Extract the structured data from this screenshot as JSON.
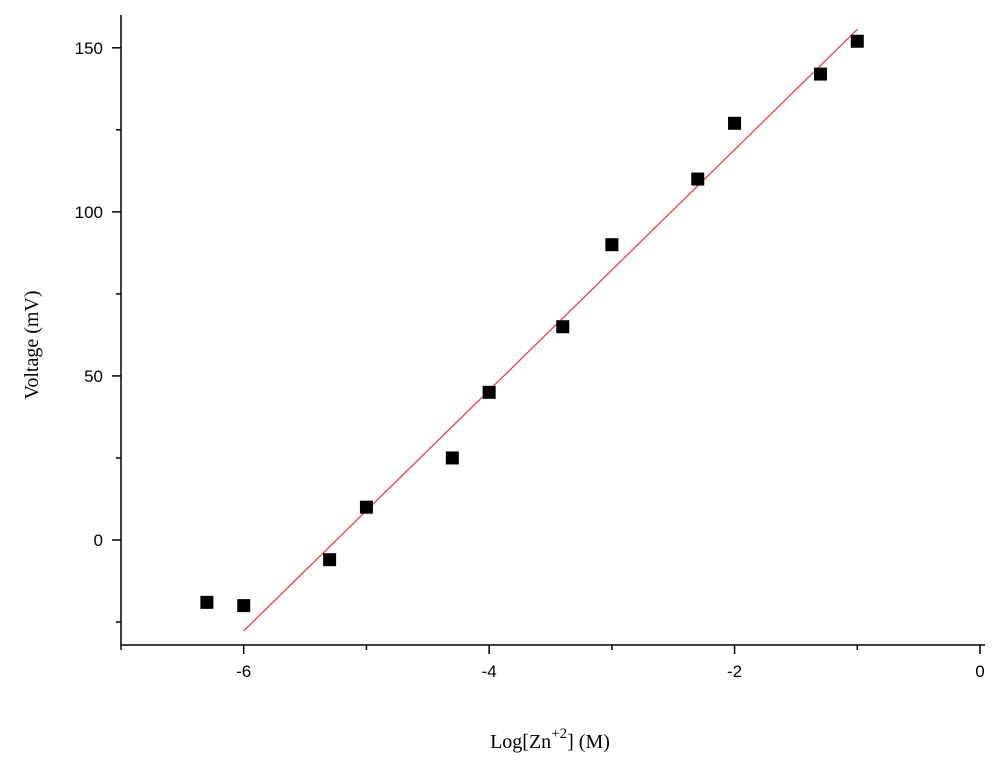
{
  "chart_data": {
    "type": "scatter",
    "x_label": [
      "Log[Zn",
      "+2",
      "] (M)"
    ],
    "y_label": "Voltage (mV)",
    "x": [
      -6.3,
      -6,
      -5.3,
      -5,
      -4.3,
      -4,
      -3.4,
      -3,
      -2.3,
      -2,
      -1.3,
      -1
    ],
    "values": [
      -19,
      -20,
      -6,
      10,
      25,
      45,
      65,
      90,
      110,
      127,
      142,
      152
    ],
    "color": "#000000",
    "fit": {
      "x": [
        -6,
        -1
      ],
      "values": [
        -27.7,
        155.6
      ],
      "color": "#f04040"
    },
    "xlim": [
      -7,
      0
    ],
    "xticks": [
      -6,
      -4,
      -2,
      0
    ],
    "xminorticks": [
      -7,
      -5,
      -3,
      -1
    ],
    "ylim": [
      -32,
      160
    ],
    "yticks": [
      0,
      50,
      100,
      150
    ],
    "yminorticks": [
      -25,
      25,
      75,
      125
    ]
  }
}
